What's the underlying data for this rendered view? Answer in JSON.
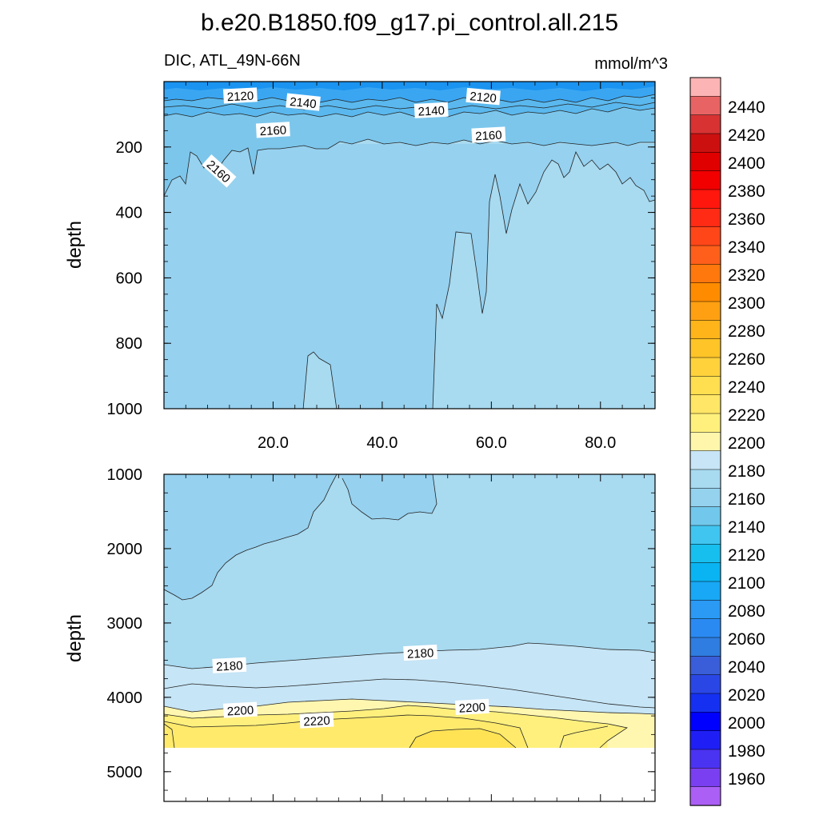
{
  "chart_data": {
    "type": "heatmap",
    "title": "b.e20.B1850.f09_g17.pi_control.all.215",
    "left_subtitle": "DIC, ATL_49N-66N",
    "right_subtitle": "mmol/m^3",
    "x_range": [
      0,
      90
    ],
    "x_tick_labels": [
      "20.0",
      "40.0",
      "60.0",
      "80.0"
    ],
    "x_ticks": [
      20,
      40,
      60,
      80
    ],
    "panels": [
      {
        "name": "upper",
        "ylabel": "depth",
        "y_range": [
          0,
          1000
        ],
        "y_ticks": [
          200,
          400,
          600,
          800,
          1000
        ],
        "y_tick_labels": [
          "200",
          "400",
          "600",
          "800",
          "1000"
        ],
        "line_labels": [
          {
            "text": "2120",
            "x": 14,
            "y": 45
          },
          {
            "text": "2140",
            "x": 25.5,
            "y": 65
          },
          {
            "text": "2140",
            "x": 49,
            "y": 90
          },
          {
            "text": "2120",
            "x": 58.5,
            "y": 48
          },
          {
            "text": "2160",
            "x": 20,
            "y": 150
          },
          {
            "text": "2160",
            "x": 10,
            "y": 275
          },
          {
            "text": "2160",
            "x": 59.5,
            "y": 165
          }
        ]
      },
      {
        "name": "lower",
        "ylabel": "depth",
        "y_range": [
          1000,
          5400
        ],
        "y_ticks": [
          1000,
          2000,
          3000,
          4000,
          5000
        ],
        "y_tick_labels": [
          "1000",
          "2000",
          "3000",
          "4000",
          "5000"
        ],
        "line_labels": [
          {
            "text": "2180",
            "x": 12,
            "y": 3580
          },
          {
            "text": "2180",
            "x": 47,
            "y": 3410
          },
          {
            "text": "2200",
            "x": 14,
            "y": 4180
          },
          {
            "text": "2220",
            "x": 28,
            "y": 4320
          },
          {
            "text": "2200",
            "x": 56.5,
            "y": 4140
          }
        ]
      }
    ],
    "colorbar": {
      "levels": [
        "1960",
        "1980",
        "2000",
        "2020",
        "2040",
        "2060",
        "2080",
        "2100",
        "2120",
        "2140",
        "2160",
        "2180",
        "2200",
        "2220",
        "2240",
        "2260",
        "2280",
        "2300",
        "2320",
        "2340",
        "2360",
        "2380",
        "2400",
        "2420",
        "2440"
      ],
      "colors": [
        "#ab5ff5",
        "#7a3ff0",
        "#4b33f2",
        "#1f1ff5",
        "#0000ff",
        "#1530f0",
        "#2a47e6",
        "#3a5ed9",
        "#2f7de0",
        "#2b8af2",
        "#2a9af5",
        "#18a8f5",
        "#0ab4f2",
        "#17bfef",
        "#40c5f0",
        "#72c8ec",
        "#94d2ee",
        "#a8daf0",
        "#c7e5f6",
        "#fff6ab",
        "#fff07d",
        "#ffe666",
        "#ffde50",
        "#ffd23c",
        "#ffc428",
        "#ffb41a",
        "#ffa012",
        "#ff8c00",
        "#ff780d",
        "#ff5f1a",
        "#ff4619",
        "#ff2b14",
        "#ff160d",
        "#f20000",
        "#e00000",
        "#cc1010",
        "#d83232",
        "#e86464",
        "#fcb4b4"
      ],
      "min_level": 1960,
      "max_level": 2440
    },
    "colors": {
      "surface_strong": "#1a8fee",
      "band_2120": "#36a8f1",
      "band_2140": "#5dbbee",
      "band_2160": "#88c9ec",
      "band_2170": "#98d2ee",
      "band_2180": "#a8daf0",
      "band_2190": "#c7e5f6",
      "band_2200": "#fff6ab",
      "band_2210": "#fff07d",
      "band_2220": "#ffe666"
    }
  }
}
